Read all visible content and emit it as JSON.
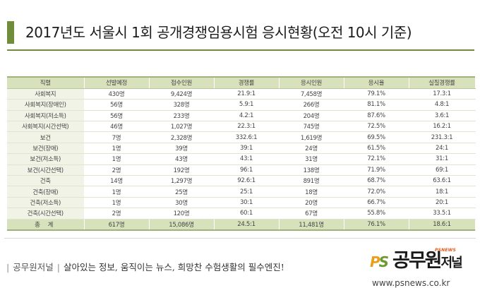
{
  "header": {
    "title": "2017년도 서울시 1회 공개경쟁임용시험 응시현황(오전 10시 기준)",
    "accent_color": "#6f8d3a"
  },
  "table": {
    "columns": [
      "직렬",
      "선발예정",
      "접수인원",
      "경쟁률",
      "응시인원",
      "응시율",
      "실질경쟁률"
    ],
    "rows": [
      [
        "사회복지",
        "430명",
        "9,424명",
        "21.9:1",
        "7,458명",
        "79.1%",
        "17.3:1"
      ],
      [
        "사회복지(장애인)",
        "56명",
        "328명",
        "5.9:1",
        "266명",
        "81.1%",
        "4.8:1"
      ],
      [
        "사회복지(저소득)",
        "56명",
        "233명",
        "4.2:1",
        "204명",
        "87.6%",
        "3.6:1"
      ],
      [
        "사회복지(시간선택)",
        "46명",
        "1,027명",
        "22.3:1",
        "745명",
        "72.5%",
        "16.2:1"
      ],
      [
        "보건",
        "7명",
        "2,328명",
        "332.6:1",
        "1,619명",
        "69.5%",
        "231.3:1"
      ],
      [
        "보건(장애)",
        "1명",
        "39명",
        "39:1",
        "24명",
        "61.5%",
        "24:1"
      ],
      [
        "보건(저소득)",
        "1명",
        "43명",
        "43:1",
        "31명",
        "72.1%",
        "31:1"
      ],
      [
        "보건(시간선택)",
        "2명",
        "192명",
        "96:1",
        "138명",
        "71.9%",
        "69:1"
      ],
      [
        "건축",
        "14명",
        "1,297명",
        "92.6:1",
        "891명",
        "68.7%",
        "63.6:1"
      ],
      [
        "건축(장애)",
        "1명",
        "25명",
        "25:1",
        "18명",
        "72.0%",
        "18:1"
      ],
      [
        "건축(저소득)",
        "1명",
        "30명",
        "30:1",
        "20명",
        "66.7%",
        "20:1"
      ],
      [
        "건축(시간선택)",
        "2명",
        "120명",
        "60:1",
        "67명",
        "55.8%",
        "33.5:1"
      ]
    ],
    "total": [
      "총 계",
      "617명",
      "15,086명",
      "24.5:1",
      "11,481명",
      "76.1%",
      "18.6:1"
    ]
  },
  "footer": {
    "brand": "공무원저널",
    "slogan": "살아있는 정보, 움직이는 뉴스, 희망찬 수험생활의 필수엔진!",
    "logo_ps_p": "P",
    "logo_ps_s": "S",
    "logo_name": "공무원",
    "logo_name_small": "저널",
    "logo_tag": "PSNEWS",
    "url": "www.psnews.co.kr"
  }
}
